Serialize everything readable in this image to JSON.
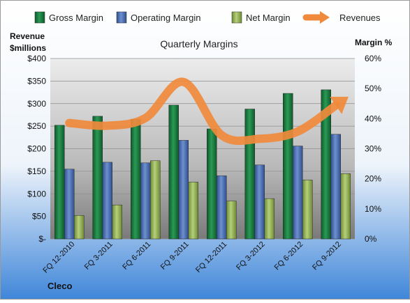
{
  "chart_data": {
    "type": "bar",
    "title": "Quarterly Margins",
    "left_axis_label": [
      "Revenue",
      "$millions"
    ],
    "right_axis_label": "Margin %",
    "company_label": "Cleco",
    "categories": [
      "FQ 12-2010",
      "FQ 3-2011",
      "FQ 6-2011",
      "FQ 9-2011",
      "FQ 12-2011",
      "FQ 3-2012",
      "FQ 6-2012",
      "FQ 9-2012"
    ],
    "y_left": {
      "min": 0,
      "max": 400,
      "ticks": [
        "$-",
        "$50",
        "$100",
        "$150",
        "$200",
        "$250",
        "$300",
        "$350",
        "$400"
      ]
    },
    "y_right": {
      "min": 0,
      "max": 60,
      "ticks": [
        "0%",
        "10%",
        "20%",
        "30%",
        "40%",
        "50%",
        "60%"
      ]
    },
    "legend_position": "top",
    "series": [
      {
        "name": "Gross Margin",
        "axis": "right",
        "color": "#1a7a3e",
        "values": [
          37.8,
          40.8,
          39.8,
          44.5,
          36.6,
          43.2,
          48.4,
          49.6
        ]
      },
      {
        "name": "Operating Margin",
        "axis": "right",
        "color": "#4a6fb5",
        "values": [
          23.2,
          25.5,
          25.3,
          32.8,
          21.0,
          24.6,
          30.9,
          34.8
        ]
      },
      {
        "name": "Net Margin",
        "axis": "right",
        "color": "#93b35a",
        "values": [
          7.8,
          11.3,
          26.0,
          18.9,
          12.6,
          13.4,
          19.6,
          21.7
        ]
      },
      {
        "name": "Revenues",
        "axis": "left",
        "color": "#f08a3c",
        "type": "line",
        "values": [
          257,
          251,
          268,
          348,
          230,
          222,
          238,
          296
        ]
      }
    ]
  }
}
